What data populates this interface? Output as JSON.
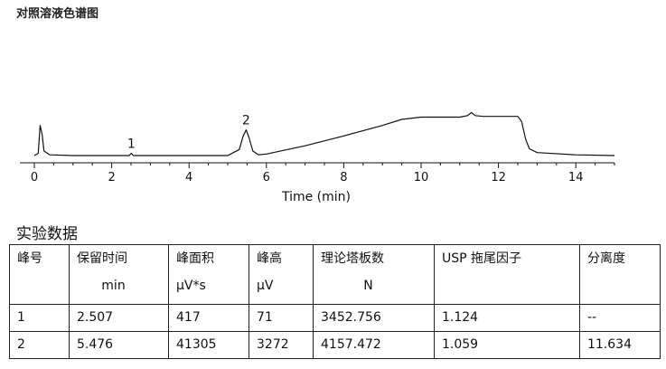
{
  "chart_title": "对照溶液色谱图",
  "chart_data": {
    "type": "line",
    "title": "对照溶液色谱图",
    "xlabel": "Time (min)",
    "ylabel": "",
    "xlim": [
      0,
      15
    ],
    "x_ticks": [
      "0",
      "2",
      "4",
      "6",
      "8",
      "10",
      "12",
      "14"
    ],
    "grid": false,
    "series": [
      {
        "x": [
          0.0,
          0.1,
          0.15,
          0.2,
          0.25,
          0.4,
          1.0,
          2.0,
          2.45,
          2.507,
          2.56,
          3.0,
          4.0,
          5.0,
          5.3,
          5.4,
          5.476,
          5.55,
          5.65,
          5.8,
          6.0,
          7.0,
          8.0,
          9.0,
          9.5,
          10.0,
          11.0,
          11.2,
          11.3,
          11.4,
          11.6,
          12.0,
          12.5,
          12.6,
          12.7,
          12.8,
          13.0,
          14.0,
          15.0
        ],
        "y": [
          0,
          0.3,
          4.0,
          2.8,
          0.6,
          0.1,
          0,
          0,
          0,
          0.3,
          0,
          0,
          0,
          0,
          0.8,
          2.6,
          3.4,
          2.4,
          0.6,
          0.1,
          0.2,
          1.3,
          2.6,
          4.0,
          4.8,
          5.1,
          5.1,
          5.3,
          5.7,
          5.3,
          5.2,
          5.2,
          5.2,
          4.5,
          2.2,
          0.9,
          0.4,
          0.1,
          0
        ],
        "ylim": [
          0,
          6
        ]
      }
    ],
    "peaks": [
      {
        "label": "1",
        "x": 2.507,
        "y": 0.3
      },
      {
        "label": "2",
        "x": 5.476,
        "y": 3.4
      }
    ]
  },
  "table": {
    "title": "实验数据",
    "headers": [
      {
        "line1": "峰号",
        "line2": ""
      },
      {
        "line1": "保留时间",
        "line2": "min"
      },
      {
        "line1": "峰面积",
        "line2": "μV*s"
      },
      {
        "line1": "峰高",
        "line2": "μV"
      },
      {
        "line1": "理论塔板数",
        "line2": "N"
      },
      {
        "line1": "USP 拖尾因子",
        "line2": ""
      },
      {
        "line1": "分离度",
        "line2": ""
      }
    ],
    "rows": [
      [
        "1",
        "2.507",
        "417",
        "71",
        "3452.756",
        "1.124",
        "--"
      ],
      [
        "2",
        "5.476",
        "41305",
        "3272",
        "4157.472",
        "1.059",
        "11.634"
      ]
    ]
  }
}
